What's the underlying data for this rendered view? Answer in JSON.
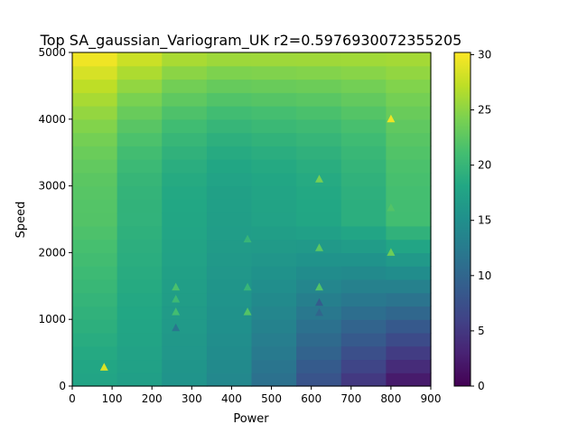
{
  "chart_data": {
    "type": "heatmap",
    "title": "Top SA_gaussian_Variogram_UK r2=0.5976930072355205",
    "xlabel": "Power",
    "ylabel": "Speed",
    "xlim": [
      0,
      900
    ],
    "ylim": [
      0,
      5000
    ],
    "xticks": [
      "0",
      "100",
      "200",
      "300",
      "400",
      "500",
      "600",
      "700",
      "800",
      "900"
    ],
    "yticks": [
      "0",
      "1000",
      "2000",
      "3000",
      "4000",
      "5000"
    ],
    "grid": false,
    "colormap": "viridis",
    "colorbar": {
      "range": [
        0,
        30.2
      ],
      "ticks": [
        "0",
        "5",
        "10",
        "15",
        "20",
        "25",
        "30"
      ]
    },
    "heatmap": {
      "x_bins": 8,
      "y_bins": 25,
      "x_range": [
        0,
        900
      ],
      "y_range": [
        0,
        5000
      ],
      "description_free_values_model": {
        "column_values_at_speed_0": [
          17.5,
          17.0,
          15.5,
          14.0,
          11.0,
          7.5,
          4.5,
          1.5
        ],
        "column_values_at_speed_2500": [
          22.0,
          19.5,
          18.0,
          17.0,
          17.5,
          18.0,
          19.0,
          21.0
        ],
        "column_values_at_speed_5000": [
          30.2,
          28.5,
          27.0,
          26.5,
          26.5,
          26.5,
          26.5,
          26.5
        ]
      }
    },
    "series": [
      {
        "type": "scatter",
        "marker": "triangle",
        "x": [
          80,
          260,
          260,
          260,
          260,
          440,
          440,
          440,
          620,
          620,
          620,
          620,
          620,
          800,
          800,
          800
        ],
        "y": [
          280,
          870,
          1110,
          1300,
          1480,
          1110,
          1480,
          2200,
          1100,
          1250,
          1480,
          2070,
          3100,
          2000,
          2670,
          4000
        ],
        "values": [
          28.5,
          12.0,
          21.0,
          20.5,
          21.5,
          22.0,
          20.0,
          20.0,
          10.0,
          9.0,
          22.0,
          22.5,
          24.0,
          23.5,
          22.0,
          29.5
        ]
      }
    ]
  }
}
